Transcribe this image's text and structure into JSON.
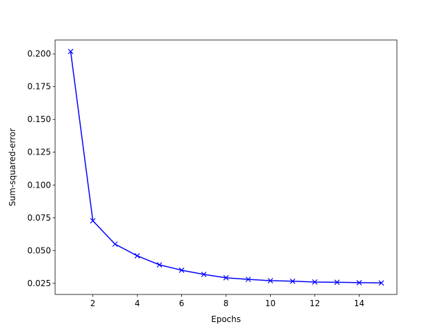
{
  "chart_data": {
    "type": "line",
    "xlabel": "Epochs",
    "ylabel": "Sum-squared-error",
    "x": [
      1,
      2,
      3,
      4,
      5,
      6,
      7,
      8,
      9,
      10,
      11,
      12,
      13,
      14,
      15
    ],
    "series": [
      {
        "color": "#0000ff",
        "marker": "x",
        "values": [
          0.2018,
          0.0727,
          0.0549,
          0.046,
          0.0391,
          0.035,
          0.0318,
          0.0292,
          0.028,
          0.027,
          0.0266,
          0.026,
          0.0258,
          0.0255,
          0.0253
        ]
      }
    ],
    "xlim": [
      0.3,
      15.7
    ],
    "xticks": [
      2,
      4,
      6,
      8,
      10,
      12,
      14
    ],
    "ylim": [
      0.0165,
      0.2106
    ],
    "yticks": [
      {
        "value": 0.025,
        "label": "0.025"
      },
      {
        "value": 0.05,
        "label": "0.050"
      },
      {
        "value": 0.075,
        "label": "0.075"
      },
      {
        "value": 0.1,
        "label": "0.100"
      },
      {
        "value": 0.125,
        "label": "0.125"
      },
      {
        "value": 0.15,
        "label": "0.150"
      },
      {
        "value": 0.175,
        "label": "0.175"
      },
      {
        "value": 0.2,
        "label": "0.200"
      }
    ],
    "grid": false
  }
}
